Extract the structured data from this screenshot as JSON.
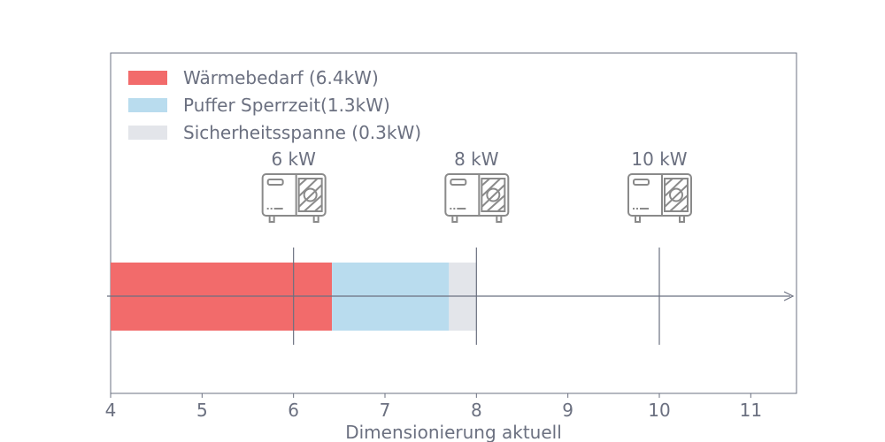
{
  "chart_data": {
    "type": "bar",
    "orientation": "horizontal-stacked",
    "xlabel": "Dimensionierung aktuell",
    "xlim": [
      4,
      11.5
    ],
    "xticks": [
      4,
      5,
      6,
      7,
      8,
      9,
      10,
      11
    ],
    "xtick_labels": [
      "4",
      "5",
      "6",
      "7",
      "8",
      "9",
      "10",
      "11"
    ],
    "legend_placement": "top-left",
    "grid": false,
    "series": [
      {
        "name": "Wärmebedarf (6.4kW)",
        "start": 4,
        "end": 6.42,
        "color": "#f26b6b"
      },
      {
        "name": "Puffer Sperrzeit(1.3kW)",
        "start": 6.42,
        "end": 7.7,
        "color": "#b9dcee"
      },
      {
        "name": "Sicherheitsspanne (0.3kW)",
        "start": 7.7,
        "end": 8.0,
        "color": "#e3e5ea"
      }
    ],
    "markers": [
      {
        "x": 6,
        "label": "6 kW",
        "icon": "heat-pump-icon"
      },
      {
        "x": 8,
        "label": "8 kW",
        "icon": "heat-pump-icon"
      },
      {
        "x": 10,
        "label": "10 kW",
        "icon": "heat-pump-icon"
      }
    ],
    "colors": {
      "axis": "#6b7080",
      "icon": "#8a8a8a"
    }
  }
}
